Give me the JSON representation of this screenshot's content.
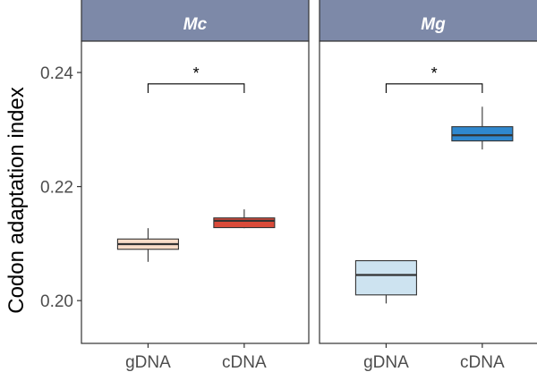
{
  "chart_data": {
    "type": "boxplot",
    "ylabel": "Codon adaptation index",
    "ylim": [
      0.1925,
      0.2455
    ],
    "yticks": [
      {
        "value": 0.2,
        "label": "0.20"
      },
      {
        "value": 0.22,
        "label": "0.22"
      },
      {
        "value": 0.24,
        "label": "0.24"
      }
    ],
    "categories": [
      "gDNA",
      "cDNA"
    ],
    "panels": [
      {
        "title": "Mc",
        "significance": "*",
        "bracket_y": 0.238,
        "bracket_drop": 0.0016,
        "boxes": [
          {
            "category": "gDNA",
            "color": "#f9dcc8",
            "min": 0.2068,
            "q1": 0.209,
            "median": 0.2099,
            "q3": 0.2108,
            "max": 0.2127
          },
          {
            "category": "cDNA",
            "color": "#d94b3a",
            "min": 0.2127,
            "q1": 0.2128,
            "median": 0.214,
            "q3": 0.2145,
            "max": 0.216
          }
        ]
      },
      {
        "title": "Mg",
        "significance": "*",
        "bracket_y": 0.238,
        "bracket_drop": 0.0016,
        "boxes": [
          {
            "category": "gDNA",
            "color": "#cde3f0",
            "min": 0.1995,
            "q1": 0.201,
            "median": 0.2045,
            "q3": 0.207,
            "max": 0.207
          },
          {
            "category": "cDNA",
            "color": "#2f88cf",
            "min": 0.2265,
            "q1": 0.228,
            "median": 0.229,
            "q3": 0.2305,
            "max": 0.234
          }
        ]
      }
    ]
  },
  "colors": {
    "strip_fill": "#7d89a8",
    "strip_border": "#333333",
    "panel_border": "#333333"
  }
}
